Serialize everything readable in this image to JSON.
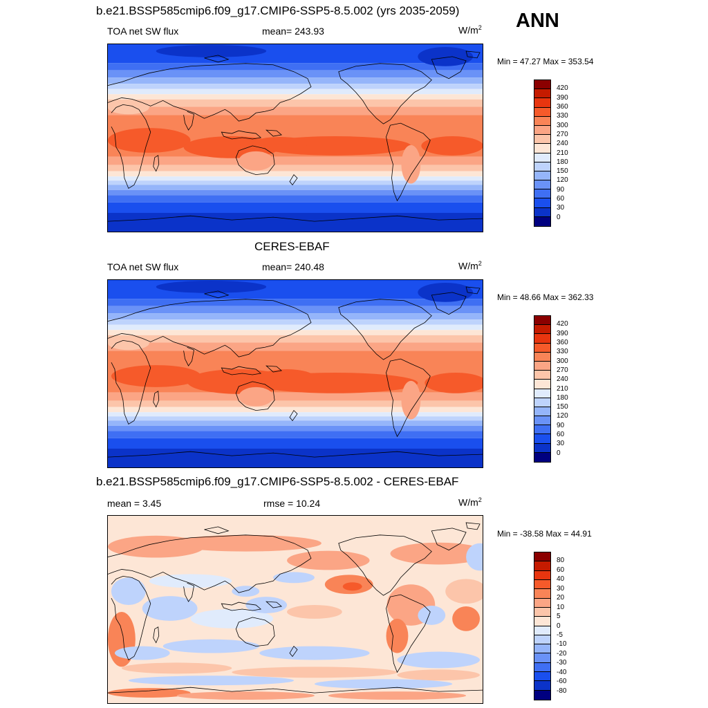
{
  "season": "ANN",
  "panels": [
    {
      "title": "b.e21.BSSP585cmip6.f09_g17.CMIP6-SSP5-8.5.002 (yrs 2035-2059)",
      "left_label": "TOA net SW flux",
      "center_label": "mean= 243.93",
      "units": "W/m",
      "units_sup": "2",
      "minmax": "Min =  47.27 Max = 353.54",
      "colorbar": {
        "labels": [
          "420",
          "390",
          "360",
          "330",
          "300",
          "270",
          "240",
          "210",
          "180",
          "150",
          "120",
          "90",
          "60",
          "30",
          "0"
        ],
        "colors": [
          "#8b0000",
          "#c51b00",
          "#e8350f",
          "#f65a2a",
          "#f98457",
          "#fba585",
          "#fcc5aa",
          "#fde6d6",
          "#e0ebfc",
          "#bed3fc",
          "#95b5fa",
          "#6a92f7",
          "#3f6ff3",
          "#1a4fee",
          "#0b33c9",
          "#000080"
        ]
      }
    },
    {
      "title": "CERES-EBAF",
      "left_label": "TOA net SW flux",
      "center_label": "mean= 240.48",
      "units": "W/m",
      "units_sup": "2",
      "minmax": "Min =  48.66 Max = 362.33",
      "colorbar": {
        "labels": [
          "420",
          "390",
          "360",
          "330",
          "300",
          "270",
          "240",
          "210",
          "180",
          "150",
          "120",
          "90",
          "60",
          "30",
          "0"
        ],
        "colors": [
          "#8b0000",
          "#c51b00",
          "#e8350f",
          "#f65a2a",
          "#f98457",
          "#fba585",
          "#fcc5aa",
          "#fde6d6",
          "#e0ebfc",
          "#bed3fc",
          "#95b5fa",
          "#6a92f7",
          "#3f6ff3",
          "#1a4fee",
          "#0b33c9",
          "#000080"
        ]
      }
    },
    {
      "title": "b.e21.BSSP585cmip6.f09_g17.CMIP6-SSP5-8.5.002 - CERES-EBAF",
      "left_label": "mean =   3.45",
      "center_label": "rmse =  10.24",
      "units": "W/m",
      "units_sup": "2",
      "minmax": "Min = -38.58 Max =  44.91",
      "colorbar": {
        "labels": [
          "80",
          "60",
          "40",
          "30",
          "20",
          "10",
          "5",
          "0",
          "-5",
          "-10",
          "-20",
          "-30",
          "-40",
          "-60",
          "-80"
        ],
        "colors": [
          "#8b0000",
          "#c51b00",
          "#e8350f",
          "#f65a2a",
          "#f98457",
          "#fba585",
          "#fcc5aa",
          "#fde6d6",
          "#e0ebfc",
          "#bed3fc",
          "#95b5fa",
          "#6a92f7",
          "#3f6ff3",
          "#1a4fee",
          "#0b33c9",
          "#000080"
        ]
      }
    }
  ]
}
